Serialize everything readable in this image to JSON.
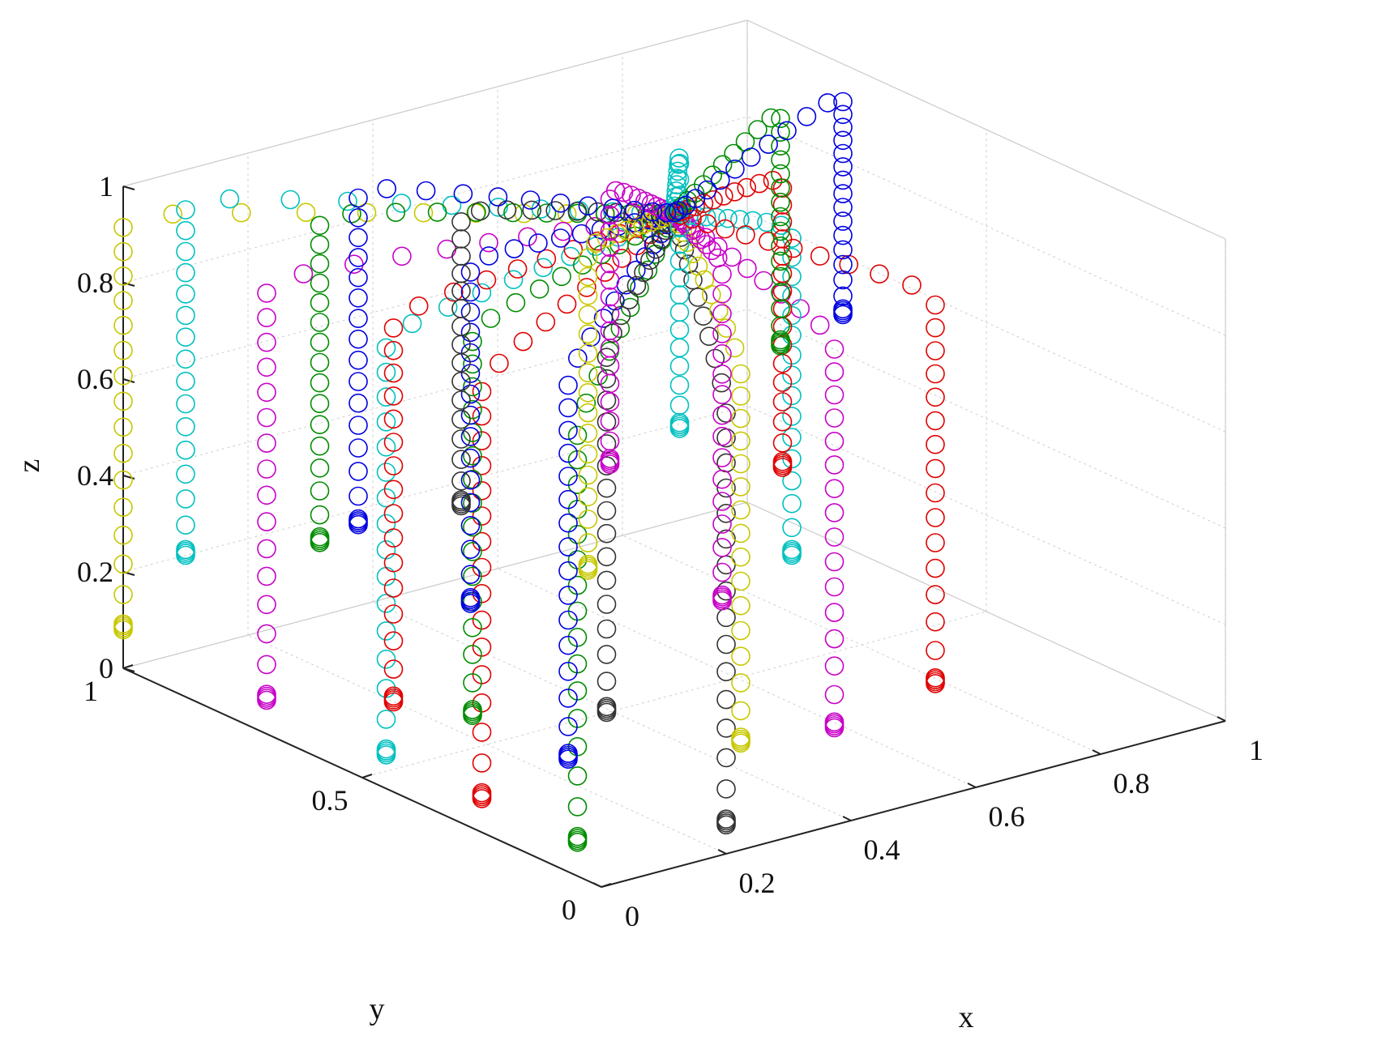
{
  "chart_data": {
    "type": "scatter3d",
    "title": "",
    "xlabel": "x",
    "ylabel": "y",
    "zlabel": "z",
    "xlim": [
      0,
      1
    ],
    "ylim": [
      0,
      1
    ],
    "zlim": [
      0,
      1
    ],
    "xticks": [
      0,
      0.2,
      0.4,
      0.6,
      0.8,
      1
    ],
    "yticks": [
      0,
      0.5,
      1
    ],
    "zticks": [
      0,
      0.2,
      0.4,
      0.6,
      0.8,
      1
    ],
    "xtick_labels": [
      "0",
      "0.2",
      "0.4",
      "0.6",
      "0.8",
      "1"
    ],
    "ytick_labels": [
      "0",
      "0.5",
      "1"
    ],
    "ztick_labels": [
      "0",
      "0.2",
      "0.4",
      "0.6",
      "0.8",
      "1"
    ],
    "grid": true,
    "marker": "open-circle",
    "apex": [
      0.5,
      0.5,
      1.0
    ],
    "points_per_trajectory": 28,
    "colors": {
      "y": "#c8c800",
      "m": "#c800c8",
      "c": "#00c0c0",
      "r": "#e00000",
      "g": "#008c00",
      "b": "#0000e0",
      "k": "#333333"
    },
    "trajectories": [
      {
        "color": "y",
        "start": [
          0.0,
          1.0,
          0.08
        ]
      },
      {
        "color": "m",
        "start": [
          0.0,
          0.7,
          0.07
        ]
      },
      {
        "color": "c",
        "start": [
          0.1,
          1.0,
          0.2
        ]
      },
      {
        "color": "c",
        "start": [
          0.0,
          0.45,
          0.07
        ]
      },
      {
        "color": "r",
        "start": [
          0.05,
          0.5,
          0.14
        ]
      },
      {
        "color": "g",
        "start": [
          0.2,
          0.85,
          0.26
        ]
      },
      {
        "color": "r",
        "start": [
          0.0,
          0.25,
          0.07
        ]
      },
      {
        "color": "g",
        "start": [
          0.1,
          0.4,
          0.14
        ]
      },
      {
        "color": "b",
        "start": [
          0.25,
          0.6,
          0.23
        ]
      },
      {
        "color": "g",
        "start": [
          0.0,
          0.05,
          0.07
        ]
      },
      {
        "color": "b",
        "start": [
          0.1,
          0.2,
          0.14
        ]
      },
      {
        "color": "k",
        "start": [
          0.35,
          0.75,
          0.33
        ]
      },
      {
        "color": "k",
        "start": [
          0.2,
          0.25,
          0.18
        ]
      },
      {
        "color": "y",
        "start": [
          0.4,
          0.55,
          0.27
        ]
      },
      {
        "color": "k",
        "start": [
          0.2,
          0.0,
          0.06
        ]
      },
      {
        "color": "y",
        "start": [
          0.3,
          0.1,
          0.15
        ]
      },
      {
        "color": "m",
        "start": [
          0.55,
          0.7,
          0.37
        ]
      },
      {
        "color": "m",
        "start": [
          0.5,
          0.4,
          0.24
        ]
      },
      {
        "color": "m",
        "start": [
          0.45,
          0.1,
          0.13
        ]
      },
      {
        "color": "c",
        "start": [
          0.7,
          0.75,
          0.37
        ]
      },
      {
        "color": "c",
        "start": [
          0.65,
          0.45,
          0.26
        ]
      },
      {
        "color": "r",
        "start": [
          0.75,
          0.6,
          0.34
        ]
      },
      {
        "color": "r",
        "start": [
          0.65,
          0.15,
          0.13
        ]
      },
      {
        "color": "g",
        "start": [
          0.9,
          0.8,
          0.45
        ]
      },
      {
        "color": "b",
        "start": [
          1.0,
          0.8,
          0.48
        ]
      },
      {
        "color": "b",
        "start": [
          0.3,
          0.9,
          0.24
        ]
      }
    ]
  }
}
